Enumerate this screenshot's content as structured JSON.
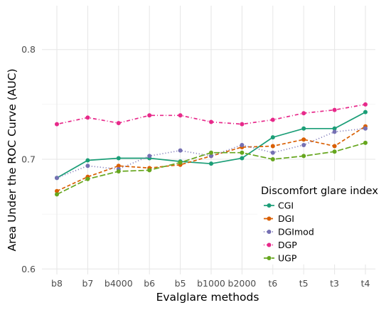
{
  "chart_data": {
    "type": "line",
    "xlabel": "Evalglare methods",
    "ylabel": "Area Under the ROC Curve (AUC)",
    "categories": [
      "b8",
      "b7",
      "b4000",
      "b6",
      "b5",
      "b1000",
      "b2000",
      "t6",
      "t5",
      "t3",
      "t4"
    ],
    "yticks": [
      0.6,
      0.7,
      0.8
    ],
    "ylim": [
      0.595,
      0.84
    ],
    "grid": true,
    "legend": {
      "title": "Discomfort glare index",
      "position": "right-inside"
    },
    "series": [
      {
        "name": "CGI",
        "color": "#1b9e77",
        "dash": "solid",
        "values": [
          0.683,
          0.699,
          0.701,
          0.701,
          0.698,
          0.696,
          0.701,
          0.72,
          0.728,
          0.728,
          0.743
        ]
      },
      {
        "name": "DGI",
        "color": "#d95f02",
        "dash": "dashed",
        "values": [
          0.671,
          0.684,
          0.694,
          0.692,
          0.695,
          0.703,
          0.711,
          0.712,
          0.718,
          0.712,
          0.73
        ]
      },
      {
        "name": "DGImod",
        "color": "#7570b3",
        "dash": "dotted",
        "values": [
          0.683,
          0.694,
          0.691,
          0.703,
          0.708,
          0.703,
          0.713,
          0.706,
          0.713,
          0.725,
          0.728
        ]
      },
      {
        "name": "DGP",
        "color": "#e7298a",
        "dash": "dotdash",
        "values": [
          0.732,
          0.738,
          0.733,
          0.74,
          0.74,
          0.734,
          0.732,
          0.736,
          0.742,
          0.745,
          0.75
        ]
      },
      {
        "name": "UGP",
        "color": "#66a61e",
        "dash": "longdash",
        "values": [
          0.668,
          0.682,
          0.689,
          0.69,
          0.697,
          0.706,
          0.706,
          0.7,
          0.703,
          0.707,
          0.715
        ]
      }
    ]
  }
}
